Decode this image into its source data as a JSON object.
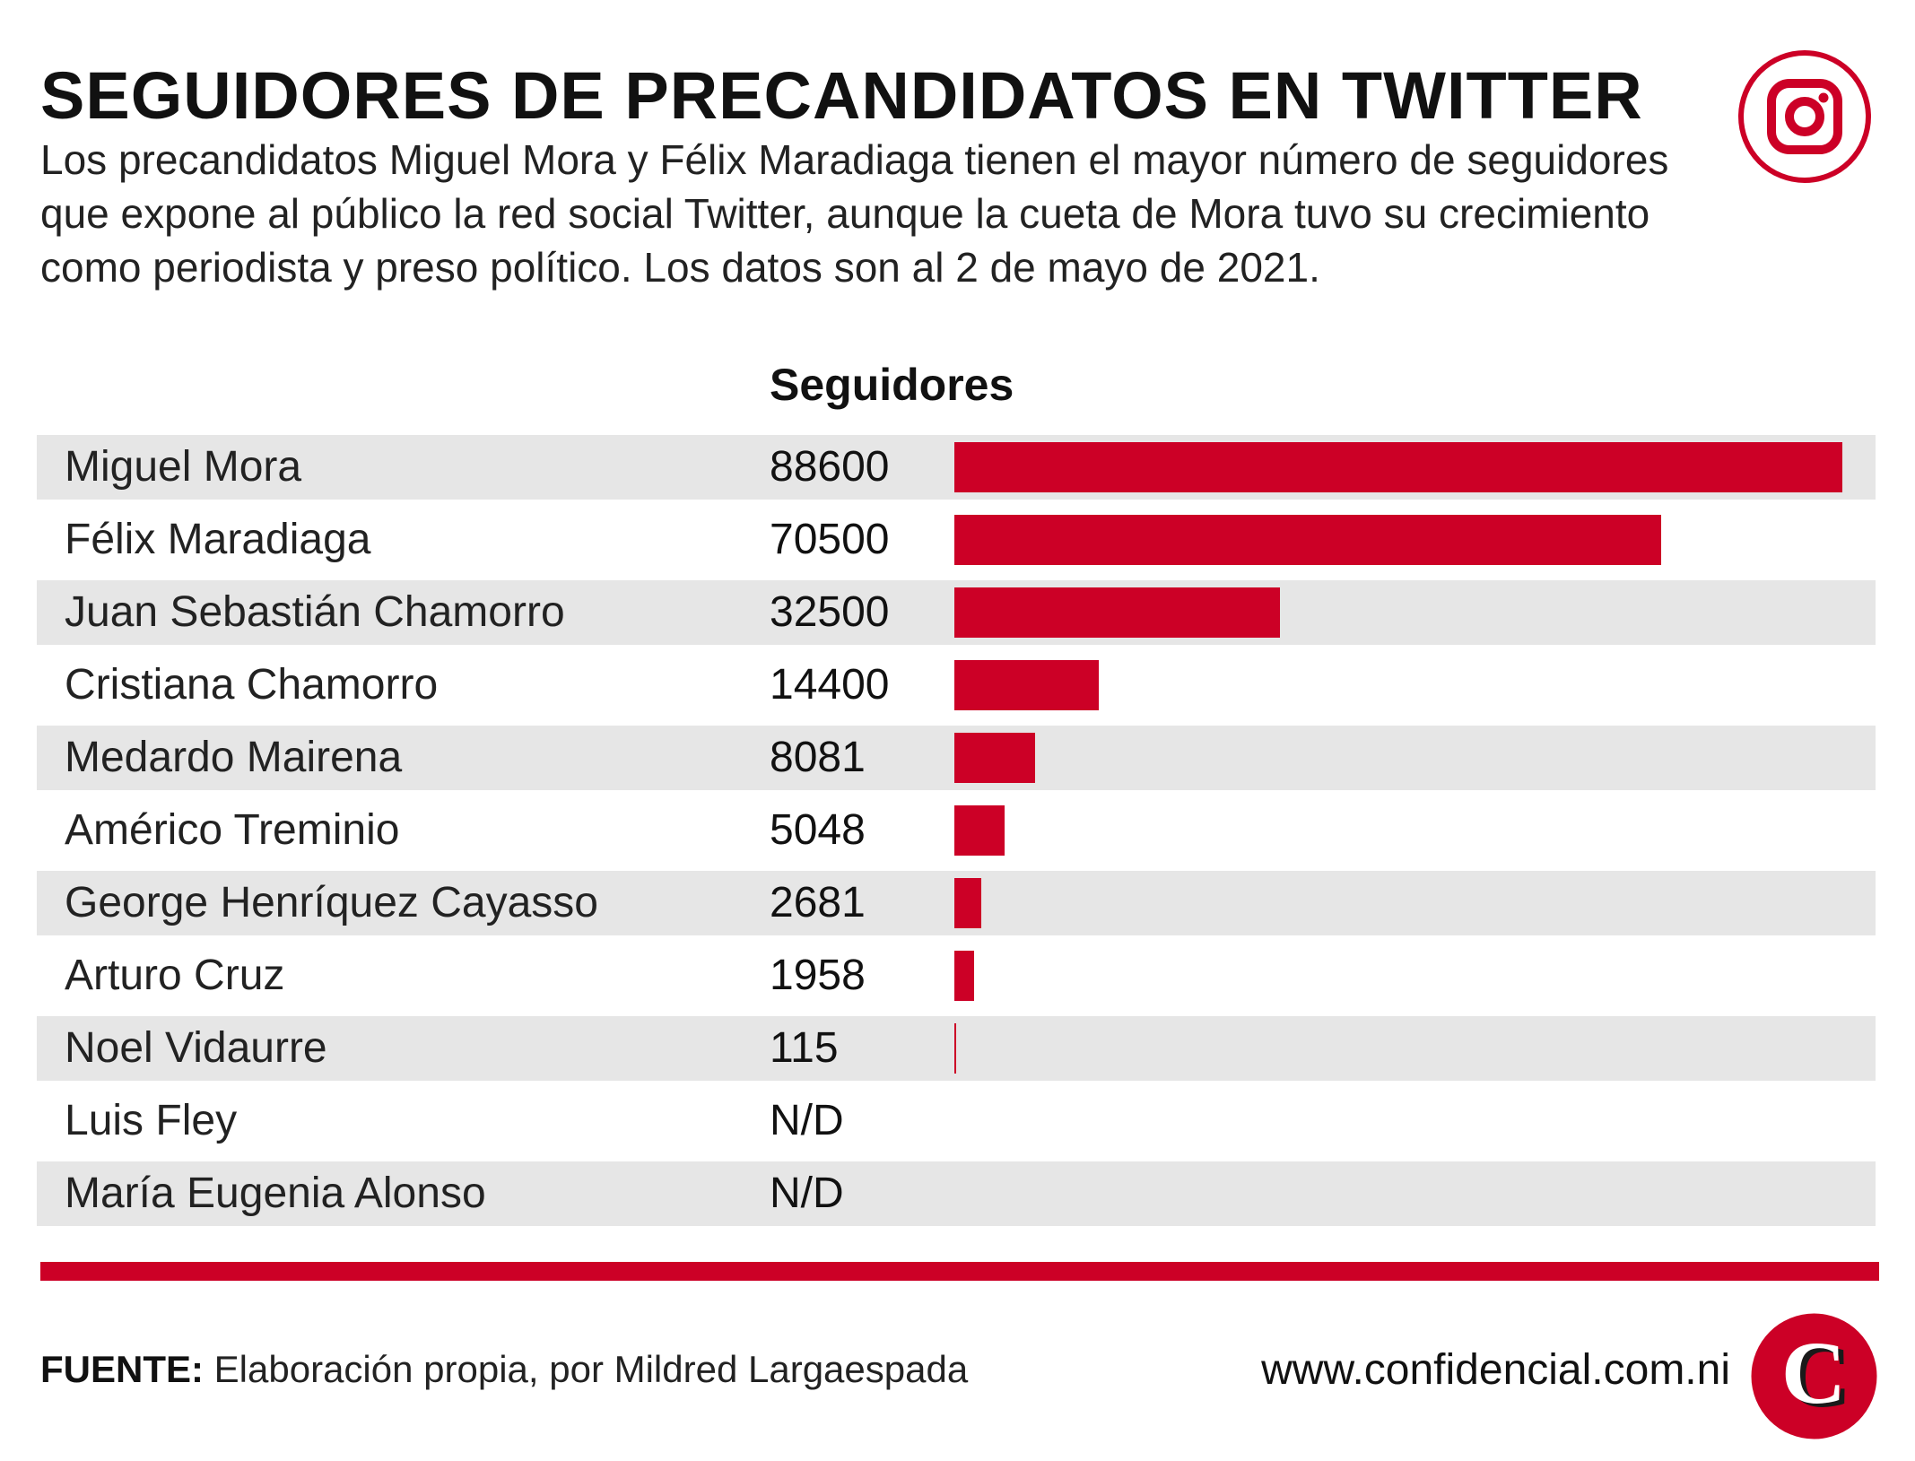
{
  "header": {
    "title": "SEGUIDORES DE PRECANDIDATOS EN TWITTER",
    "subtitle": "Los precandidatos Miguel Mora y Félix Maradiaga tienen el mayor número de seguidores que expone al público la red social Twitter, aunque la cueta de Mora tuvo su crecimiento como periodista y preso político. Los datos son al 2 de mayo de 2021.",
    "icon": "instagram-icon"
  },
  "chart_data": {
    "type": "bar",
    "orientation": "horizontal",
    "title": "SEGUIDORES DE PRECANDIDATOS EN TWITTER",
    "value_header": "Seguidores",
    "bar_color": "#cc0026",
    "row_shade_color": "#e6e6e6",
    "categories": [
      "Miguel Mora",
      "Félix Maradiaga",
      "Juan Sebastián Chamorro",
      "Cristiana Chamorro",
      "Medardo Mairena",
      "Américo Treminio",
      "George Henríquez Cayasso",
      "Arturo Cruz",
      "Noel Vidaurre",
      "Luis Fley",
      "María Eugenia Alonso"
    ],
    "value_labels": [
      "88600",
      "70500",
      "32500",
      "14400",
      "8081",
      "5048",
      "2681",
      "1958",
      "115",
      "N/D",
      "N/D"
    ],
    "values": [
      88600,
      70500,
      32500,
      14400,
      8081,
      5048,
      2681,
      1958,
      115,
      null,
      null
    ],
    "xlim": [
      0,
      88600
    ]
  },
  "footer": {
    "source_label": "FUENTE:",
    "source_text": " Elaboración propia, por Mildred Largaespada",
    "url": "www.confidencial.com.ni",
    "logo": "confidencial-logo",
    "logo_letter": "C"
  }
}
